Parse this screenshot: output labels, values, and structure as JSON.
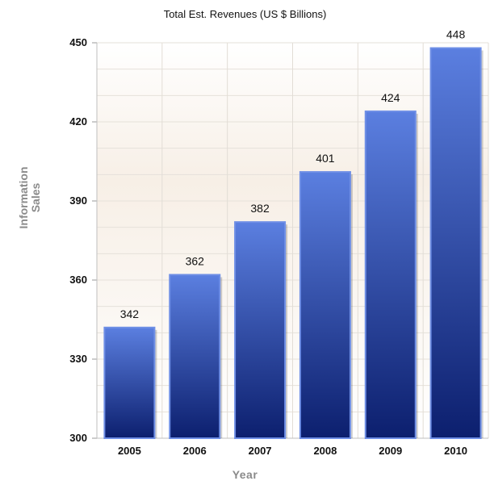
{
  "chart_data": {
    "type": "bar",
    "title": "Total Est. Revenues (US $ Billions)",
    "xlabel": "Year",
    "ylabel_lines": [
      "Information",
      "Sales"
    ],
    "categories": [
      "2005",
      "2006",
      "2007",
      "2008",
      "2009",
      "2010"
    ],
    "values": [
      342,
      362,
      382,
      401,
      424,
      448
    ],
    "ylim": [
      300,
      450
    ],
    "yticks": [
      300,
      330,
      360,
      390,
      420,
      450
    ],
    "grid": true,
    "legend": "none",
    "bar_color_top": "#5b7fe0",
    "bar_color_bottom": "#0c1f6e"
  }
}
